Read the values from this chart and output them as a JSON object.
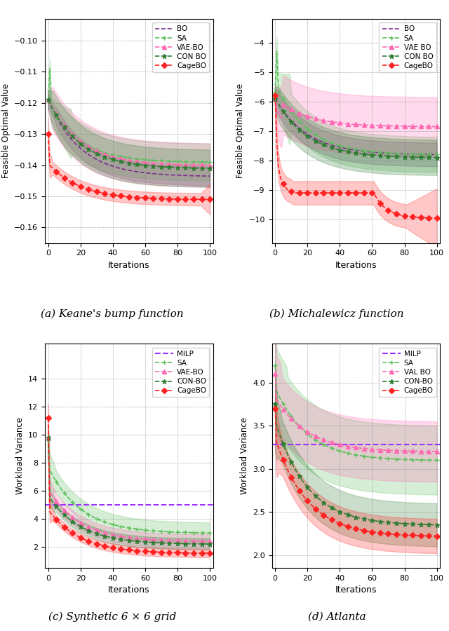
{
  "subplot_titles": [
    "(a) Keane's bump function",
    "(b) Michalewicz function",
    "(c) Synthetic 6 × 6 grid",
    "(d) Atlanta"
  ],
  "ylabels": [
    "Feasible Optimal Value",
    "Feasible Optimal Value",
    "Workload Variance",
    "Workload Variance"
  ],
  "xlabel": "Iterations",
  "colors": {
    "bo": "#7B2D8B",
    "sa": "#5BBF5B",
    "vaebo": "#FF69B4",
    "conbo": "#2E7D32",
    "cagebo": "#FF2222",
    "milp": "#9B30FF"
  },
  "plot_a": {
    "ylim": [
      -0.165,
      -0.093
    ],
    "yticks": [
      -0.1,
      -0.11,
      -0.12,
      -0.13,
      -0.14,
      -0.15,
      -0.16
    ],
    "legend_labels": [
      "BO",
      "SA",
      "VAE-BO",
      "CON BO",
      "CageBO"
    ],
    "has_hline": false
  },
  "plot_b": {
    "ylim": [
      -10.8,
      -3.2
    ],
    "yticks": [
      -4,
      -5,
      -6,
      -7,
      -8,
      -9,
      -10
    ],
    "legend_labels": [
      "BO",
      "SA",
      "VAE BO",
      "CON BO",
      "CageBO"
    ],
    "has_hline": false
  },
  "plot_c": {
    "ylim": [
      0.5,
      16.5
    ],
    "yticks": [
      2,
      4,
      6,
      8,
      10,
      12,
      14
    ],
    "legend_labels": [
      "MILP",
      "SA",
      "VAE-BO",
      "CON-BO",
      "CageBO"
    ],
    "has_hline": true,
    "hline_val": 5.0
  },
  "plot_d": {
    "ylim": [
      1.85,
      4.45
    ],
    "yticks": [
      2.0,
      2.5,
      3.0,
      3.5,
      4.0
    ],
    "legend_labels": [
      "MILP",
      "SA",
      "VAL BO",
      "CON-BO",
      "CageBO"
    ],
    "has_hline": true,
    "hline_val": 3.28
  }
}
